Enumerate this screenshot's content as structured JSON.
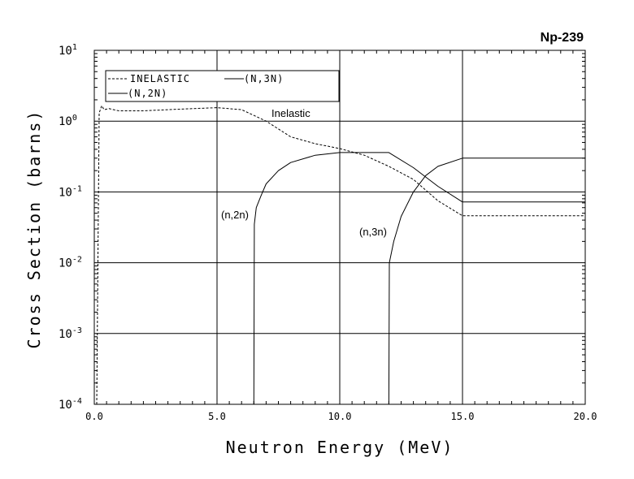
{
  "chart_data": {
    "type": "line",
    "title": "Np-239",
    "xlabel": "Neutron Energy (MeV)",
    "ylabel": "Cross Section (barns)",
    "xlim": [
      0,
      20
    ],
    "ylim_log10": [
      -4,
      1
    ],
    "yscale": "log",
    "grid": true,
    "x_tick_labels": [
      "0.0",
      "5.0",
      "10.0",
      "15.0",
      "20.0"
    ],
    "y_tick_base": "10",
    "y_tick_exponents": [
      "1",
      "0",
      "-1",
      "-2",
      "-3",
      "-4"
    ],
    "legend": {
      "placement": "top-left",
      "entries": [
        {
          "label": "INELASTIC",
          "style": "dashed"
        },
        {
          "label": "(N,3N)",
          "style": "solid"
        },
        {
          "label": "(N,2N)",
          "style": "solid"
        }
      ]
    },
    "annotations": [
      "Inelastic",
      "(n,2n)",
      "(n,3n)"
    ],
    "series": [
      {
        "name": "INELASTIC",
        "style": "dashed",
        "x": [
          0.1,
          0.2,
          0.3,
          0.4,
          0.6,
          1.0,
          2.0,
          3.0,
          4.0,
          5.0,
          6.0,
          7.0,
          8.0,
          9.0,
          10.0,
          11.0,
          12.0,
          13.0,
          14.0,
          15.0,
          20.0
        ],
        "y": [
          0.0001,
          1.3,
          1.65,
          1.45,
          1.5,
          1.4,
          1.4,
          1.45,
          1.5,
          1.55,
          1.45,
          1.0,
          0.6,
          0.48,
          0.41,
          0.33,
          0.23,
          0.15,
          0.075,
          0.046,
          0.046
        ]
      },
      {
        "name": "(N,2N)",
        "style": "solid",
        "x": [
          6.5,
          6.52,
          6.6,
          6.8,
          7.0,
          7.5,
          8.0,
          9.0,
          10.0,
          12.0,
          13.0,
          14.0,
          15.0,
          20.0
        ],
        "y": [
          0.0001,
          0.035,
          0.06,
          0.09,
          0.13,
          0.2,
          0.26,
          0.33,
          0.36,
          0.36,
          0.22,
          0.12,
          0.072,
          0.072
        ]
      },
      {
        "name": "(N,3N)",
        "style": "solid",
        "x": [
          12.0,
          12.02,
          12.2,
          12.5,
          13.0,
          13.5,
          14.0,
          15.0,
          20.0
        ],
        "y": [
          0.0001,
          0.01,
          0.02,
          0.045,
          0.1,
          0.17,
          0.23,
          0.3,
          0.3
        ]
      }
    ]
  }
}
